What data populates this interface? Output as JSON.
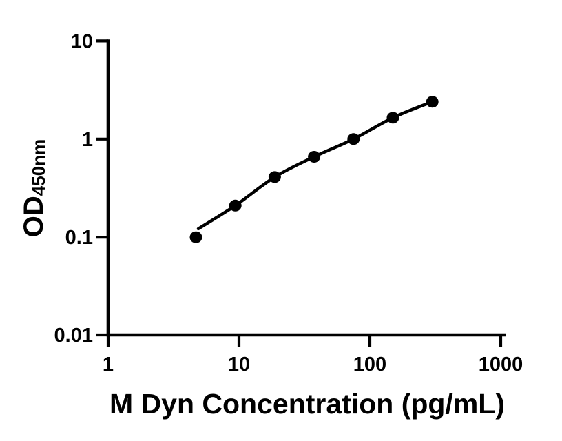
{
  "figure": {
    "background": "#ffffff",
    "foreground": "#000000"
  },
  "chart_data": {
    "type": "scatter",
    "title": "",
    "xlabel": "M Dyn Concentration (pg/mL)",
    "ylabel_base": "OD",
    "ylabel_subscript": "450nm",
    "x_scale": "log10",
    "y_scale": "log10",
    "xlim": [
      1,
      1000
    ],
    "ylim": [
      0.01,
      10
    ],
    "x_tick_values": [
      1,
      10,
      100,
      1000
    ],
    "x_tick_labels": [
      "1",
      "10",
      "100",
      "1000"
    ],
    "y_tick_values": [
      0.01,
      0.1,
      1,
      10
    ],
    "y_tick_labels": [
      "0.01",
      "0.1",
      "1",
      "10"
    ],
    "grid": false,
    "legend": "none",
    "marker_color": "#000000",
    "line_color": "#000000",
    "x": [
      4.69,
      9.38,
      18.75,
      37.5,
      75,
      150,
      300
    ],
    "y": [
      0.1,
      0.21,
      0.41,
      0.66,
      1.0,
      1.65,
      2.4
    ],
    "fit_curve": {
      "start_x": 4.89,
      "start_od": 0.122,
      "passes_through_points_from_index": 1
    }
  }
}
